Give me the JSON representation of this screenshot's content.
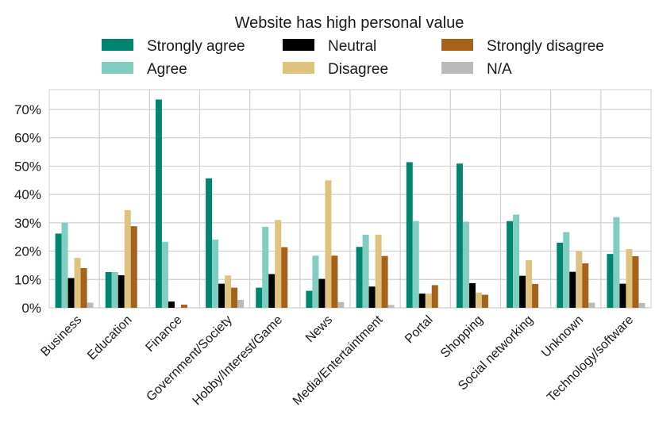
{
  "chart_data": {
    "type": "bar",
    "title": "Website has high personal value",
    "xlabel": "",
    "ylabel": "",
    "ylim": [
      0,
      77
    ],
    "yticks": [
      0,
      10,
      20,
      30,
      40,
      50,
      60,
      70
    ],
    "ytick_labels": [
      "0%",
      "10%",
      "20%",
      "30%",
      "40%",
      "50%",
      "60%",
      "70%"
    ],
    "grid": true,
    "legend_position": "top",
    "categories": [
      "Business",
      "Education",
      "Finance",
      "Government/Society",
      "Hobby/Interest/Game",
      "News",
      "Media/Entertaintment",
      "Portal",
      "Shopping",
      "Social networking",
      "Unknown",
      "Technology/software"
    ],
    "series": [
      {
        "name": "Strongly agree",
        "color": "#018571",
        "values": [
          26.2,
          12.6,
          73.5,
          45.7,
          7.1,
          6.0,
          21.5,
          51.4,
          50.9,
          30.6,
          23.0,
          19.0
        ]
      },
      {
        "name": "Agree",
        "color": "#80cdc1",
        "values": [
          30.0,
          12.6,
          23.3,
          24.1,
          28.6,
          18.4,
          25.8,
          30.6,
          30.4,
          32.9,
          26.7,
          32.0
        ]
      },
      {
        "name": "Neutral",
        "color": "#000000",
        "values": [
          10.5,
          11.5,
          2.2,
          8.5,
          11.9,
          10.2,
          7.5,
          5.0,
          8.7,
          11.3,
          12.7,
          8.5
        ]
      },
      {
        "name": "Disagree",
        "color": "#dfc27d",
        "values": [
          17.6,
          34.5,
          0.0,
          11.4,
          31.0,
          45.0,
          25.8,
          5.0,
          5.4,
          16.8,
          20.0,
          20.7
        ]
      },
      {
        "name": "Strongly disagree",
        "color": "#a6611a",
        "values": [
          14.0,
          28.8,
          1.1,
          7.1,
          21.4,
          18.4,
          18.3,
          8.0,
          4.6,
          8.4,
          15.7,
          18.2
        ]
      },
      {
        "name": "N/A",
        "color": "#bababa",
        "values": [
          1.8,
          0.0,
          0.0,
          2.8,
          0.0,
          2.0,
          1.0,
          0.0,
          0.0,
          0.0,
          1.8,
          1.7
        ]
      }
    ]
  }
}
